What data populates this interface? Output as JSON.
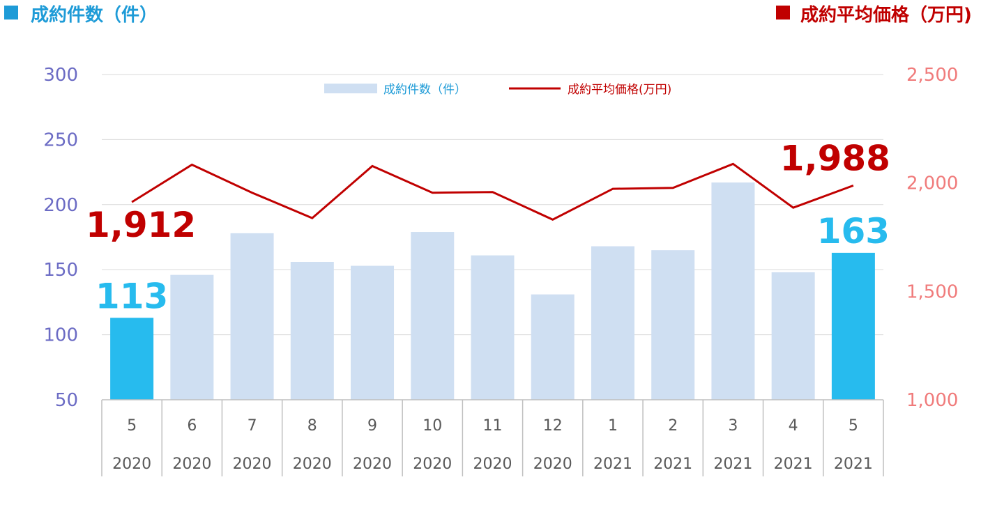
{
  "header": {
    "left_title": "成約件数（件）",
    "right_title": "成約平均価格（万円)"
  },
  "colors": {
    "bar_default": "#cfdff2",
    "bar_highlight": "#27bbee",
    "line": "#c00000",
    "left_axis": "#6b6bc4",
    "right_axis": "#f07b7b",
    "left_header": "#1e9bd7",
    "right_header": "#c00000"
  },
  "chart_data": {
    "type": "bar",
    "categories": [
      "5",
      "6",
      "7",
      "8",
      "9",
      "10",
      "11",
      "12",
      "1",
      "2",
      "3",
      "4",
      "5"
    ],
    "years": [
      "2020",
      "2020",
      "2020",
      "2020",
      "2020",
      "2020",
      "2020",
      "2020",
      "2021",
      "2021",
      "2021",
      "2021",
      "2021"
    ],
    "series": [
      {
        "name": "成約件数（件）",
        "type": "bar",
        "axis": "left",
        "values": [
          113,
          146,
          178,
          156,
          153,
          179,
          161,
          131,
          168,
          165,
          217,
          148,
          163
        ],
        "highlight": [
          0,
          12
        ]
      },
      {
        "name": "成約平均価格(万円)",
        "type": "line",
        "axis": "right",
        "values": [
          1912,
          2084,
          1955,
          1838,
          2078,
          1955,
          1958,
          1831,
          1973,
          1977,
          2088,
          1886,
          1988
        ]
      }
    ],
    "left_axis": {
      "ylim": [
        50,
        300
      ],
      "ticks": [
        "50",
        "100",
        "150",
        "200",
        "250",
        "300"
      ]
    },
    "right_axis": {
      "ylim": [
        1000,
        2500
      ],
      "ticks": [
        "1,000",
        "1,500",
        "2,000",
        "2,500"
      ]
    },
    "annotations": {
      "bar_first": "113",
      "bar_last": "163",
      "line_first": "1,912",
      "line_last": "1,988"
    },
    "grid": true,
    "legend_position": "top-center"
  }
}
